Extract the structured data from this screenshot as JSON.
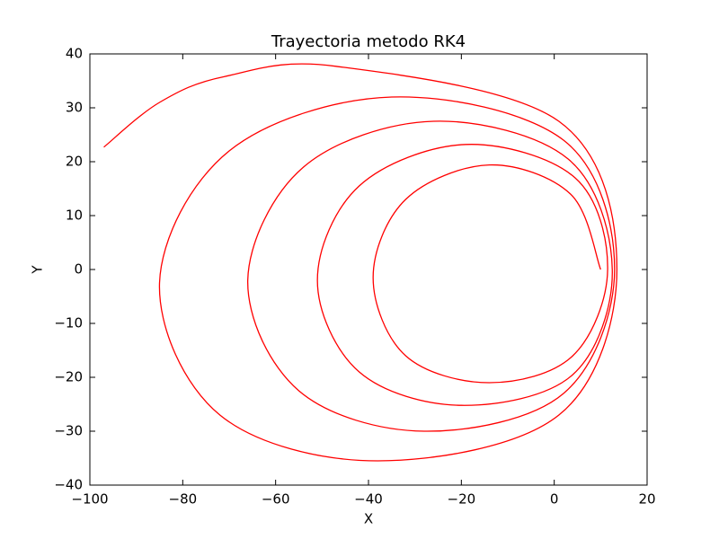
{
  "chart_data": {
    "type": "line",
    "title": "Trayectoria metodo RK4",
    "xlabel": "X",
    "ylabel": "Y",
    "series": [
      {
        "color": "#ff0000",
        "x": [
          10,
          3.5,
          -14,
          -32,
          -39,
          -32,
          -14,
          4,
          11.5,
          4.5,
          -19,
          -42,
          -51,
          -42,
          -20,
          4,
          12.5,
          3,
          -26,
          -54,
          -66,
          -55,
          -28,
          2,
          13,
          2,
          -35,
          -70,
          -85,
          -72,
          -38,
          1,
          13.5,
          1,
          -47,
          -71,
          -85,
          -97
        ],
        "y": [
          0,
          14,
          19.4,
          13,
          -1.5,
          -16,
          -21,
          -16,
          0,
          17,
          23.2,
          15.5,
          -2,
          -19,
          -25.2,
          -19.5,
          0,
          20.5,
          27.5,
          19,
          -2,
          -22.5,
          -30,
          -23,
          0,
          24,
          32,
          22,
          -2.5,
          -27,
          -35.5,
          -27,
          0,
          27.5,
          37.7,
          35.8,
          31,
          22.7
        ]
      }
    ],
    "xlim": [
      -100,
      20
    ],
    "ylim": [
      -40,
      40
    ],
    "xticks": [
      {
        "value": -100,
        "label": "−100"
      },
      {
        "value": -80,
        "label": "−80"
      },
      {
        "value": -60,
        "label": "−60"
      },
      {
        "value": -40,
        "label": "−40"
      },
      {
        "value": -20,
        "label": "−20"
      },
      0,
      20
    ],
    "yticks": [
      {
        "value": -40,
        "label": "−40"
      },
      {
        "value": -30,
        "label": "−30"
      },
      {
        "value": -20,
        "label": "−20"
      },
      {
        "value": -10,
        "label": "−10"
      },
      0,
      10,
      20,
      30,
      40
    ],
    "grid": false
  }
}
